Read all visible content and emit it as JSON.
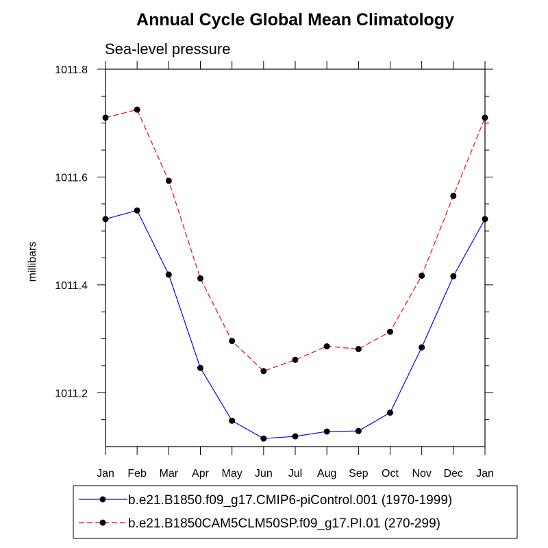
{
  "chart_data": {
    "type": "line",
    "title": "Annual Cycle Global Mean Climatology",
    "subtitle": "Sea-level pressure",
    "xlabel": "",
    "ylabel": "millibars",
    "categories": [
      "Jan",
      "Feb",
      "Mar",
      "Apr",
      "May",
      "Jun",
      "Jul",
      "Aug",
      "Sep",
      "Oct",
      "Nov",
      "Dec",
      "Jan"
    ],
    "ylim": [
      1011.1,
      1011.8
    ],
    "yticks": [
      "1011.2",
      "1011.4",
      "1011.6",
      "1011.8"
    ],
    "ytick_values": [
      1011.2,
      1011.4,
      1011.6,
      1011.8
    ],
    "yminor_step": 0.05,
    "grid": false,
    "legend_position": "bottom",
    "series": [
      {
        "name": "b.e21.B1850.f09_g17.CMIP6-piControl.001 (1970-1999)",
        "color": "#0000ff",
        "dash": "solid",
        "marker": "circle",
        "values": [
          1011.522,
          1011.538,
          1011.419,
          1011.246,
          1011.148,
          1011.115,
          1011.119,
          1011.128,
          1011.129,
          1011.163,
          1011.284,
          1011.416,
          1011.522
        ]
      },
      {
        "name": "b.e21.B1850CAM5CLM50SP.f09_g17.PI.01 (270-299)",
        "color": "#ff0000",
        "dash": "dashed",
        "marker": "circle",
        "values": [
          1011.71,
          1011.725,
          1011.593,
          1011.412,
          1011.296,
          1011.24,
          1011.261,
          1011.286,
          1011.281,
          1011.313,
          1011.417,
          1011.565,
          1011.71
        ]
      }
    ]
  }
}
